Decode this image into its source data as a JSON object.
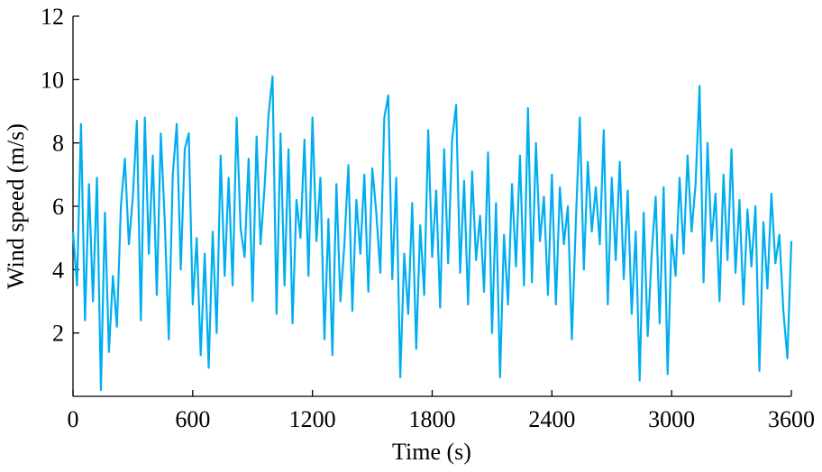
{
  "chart_data": {
    "type": "line",
    "xlabel": "Time (s)",
    "ylabel": "Wind speed (m/s)",
    "xlim": [
      0,
      3600
    ],
    "xticks": [
      0,
      600,
      1200,
      1800,
      2400,
      3000,
      3600
    ],
    "ylim": [
      0,
      12
    ],
    "yticks": [
      2,
      4,
      6,
      8,
      10,
      12
    ],
    "grid": false,
    "x": [
      0,
      20,
      40,
      60,
      80,
      100,
      120,
      140,
      160,
      180,
      200,
      220,
      240,
      260,
      280,
      300,
      320,
      340,
      360,
      380,
      400,
      420,
      440,
      460,
      480,
      500,
      520,
      540,
      560,
      580,
      600,
      620,
      640,
      660,
      680,
      700,
      720,
      740,
      760,
      780,
      800,
      820,
      840,
      860,
      880,
      900,
      920,
      940,
      960,
      980,
      1000,
      1020,
      1040,
      1060,
      1080,
      1100,
      1120,
      1140,
      1160,
      1180,
      1200,
      1220,
      1240,
      1260,
      1280,
      1300,
      1320,
      1340,
      1360,
      1380,
      1400,
      1420,
      1440,
      1460,
      1480,
      1500,
      1520,
      1540,
      1560,
      1580,
      1600,
      1620,
      1640,
      1660,
      1680,
      1700,
      1720,
      1740,
      1760,
      1780,
      1800,
      1820,
      1840,
      1860,
      1880,
      1900,
      1920,
      1940,
      1960,
      1980,
      2000,
      2020,
      2040,
      2060,
      2080,
      2100,
      2120,
      2140,
      2160,
      2180,
      2200,
      2220,
      2240,
      2260,
      2280,
      2300,
      2320,
      2340,
      2360,
      2380,
      2400,
      2420,
      2440,
      2460,
      2480,
      2500,
      2520,
      2540,
      2560,
      2580,
      2600,
      2620,
      2640,
      2660,
      2680,
      2700,
      2720,
      2740,
      2760,
      2780,
      2800,
      2820,
      2840,
      2860,
      2880,
      2900,
      2920,
      2940,
      2960,
      2980,
      3000,
      3020,
      3040,
      3060,
      3080,
      3100,
      3120,
      3140,
      3160,
      3180,
      3200,
      3220,
      3240,
      3260,
      3280,
      3300,
      3320,
      3340,
      3360,
      3380,
      3400,
      3420,
      3440,
      3460,
      3480,
      3500,
      3520,
      3540,
      3560,
      3580,
      3600
    ],
    "series": [
      {
        "color": "#00aeef",
        "values": [
          5.2,
          3.5,
          8.6,
          2.4,
          6.7,
          3.0,
          6.9,
          0.2,
          5.8,
          1.4,
          3.8,
          2.2,
          6.0,
          7.5,
          4.8,
          6.3,
          8.7,
          2.4,
          8.8,
          4.5,
          7.6,
          3.2,
          8.3,
          5.5,
          1.8,
          7.0,
          8.6,
          4.0,
          7.8,
          8.3,
          2.9,
          5.0,
          1.3,
          4.5,
          0.9,
          5.2,
          2.0,
          7.6,
          3.8,
          6.9,
          3.5,
          8.8,
          5.3,
          4.4,
          7.5,
          3.0,
          8.2,
          4.8,
          6.6,
          8.9,
          10.1,
          2.6,
          8.3,
          3.5,
          7.8,
          2.3,
          6.2,
          5.0,
          8.1,
          3.8,
          8.8,
          4.9,
          6.9,
          1.8,
          5.6,
          1.3,
          6.7,
          3.0,
          4.8,
          7.3,
          2.7,
          6.2,
          4.5,
          7.0,
          3.3,
          7.2,
          5.8,
          3.9,
          8.8,
          9.5,
          3.7,
          6.9,
          0.6,
          4.5,
          2.6,
          6.1,
          1.5,
          5.4,
          3.2,
          8.4,
          4.4,
          6.5,
          2.8,
          7.8,
          4.2,
          8.1,
          9.2,
          3.9,
          6.8,
          2.9,
          7.1,
          4.3,
          5.7,
          3.3,
          7.7,
          2.0,
          6.1,
          0.6,
          5.1,
          2.9,
          6.7,
          4.1,
          7.6,
          3.5,
          9.1,
          3.6,
          8.0,
          4.9,
          6.3,
          3.2,
          7.0,
          2.9,
          6.6,
          4.8,
          6.0,
          1.8,
          5.5,
          8.8,
          4.0,
          7.4,
          5.2,
          6.6,
          4.8,
          8.4,
          2.9,
          6.9,
          4.3,
          7.4,
          3.7,
          6.5,
          2.6,
          5.2,
          0.5,
          5.8,
          1.9,
          4.5,
          6.3,
          2.3,
          6.6,
          0.7,
          5.1,
          3.8,
          6.9,
          4.5,
          7.6,
          5.2,
          6.7,
          9.8,
          3.6,
          8.0,
          4.9,
          6.4,
          3.0,
          7.0,
          4.3,
          7.8,
          3.9,
          6.2,
          2.9,
          5.9,
          4.1,
          6.0,
          0.8,
          5.5,
          3.4,
          6.4,
          4.2,
          5.1,
          2.7,
          1.2,
          4.9
        ]
      }
    ]
  }
}
